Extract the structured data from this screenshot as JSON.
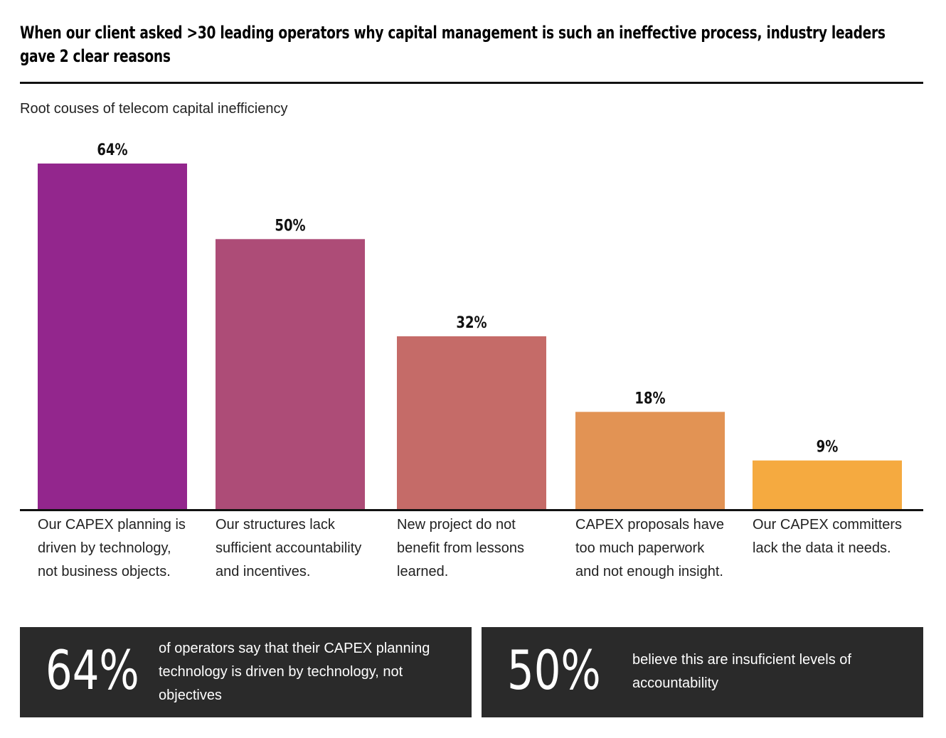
{
  "headline": "When our client asked >30 leading operators why capital management is such an ineffective process, industry leaders gave 2 clear reasons",
  "chart_data": {
    "type": "bar",
    "title": "Root couses of telecom capital inefficiency",
    "categories": [
      "Our  CAPEX planning is driven by technology, not business objects.",
      "Our structures lack sufficient accountability and incentives.",
      "New project do not benefit from lessons learned.",
      "CAPEX proposals have too much paperwork and not enough insight.",
      "Our CAPEX committers lack the data it needs."
    ],
    "values": [
      64,
      50,
      32,
      18,
      9
    ],
    "value_labels": [
      "64%",
      "50%",
      "32%",
      "18%",
      "9%"
    ],
    "colors": [
      "#93268d",
      "#ad4c77",
      "#c56b68",
      "#e29354",
      "#f5aa40"
    ],
    "ylim": [
      0,
      64
    ],
    "xlabel": "",
    "ylabel": ""
  },
  "callouts": [
    {
      "value": "64%",
      "text": "of operators say that their CAPEX planning technology is driven by technology, not objectives"
    },
    {
      "value": "50%",
      "text": "believe this are insuficient levels of accountability"
    }
  ]
}
